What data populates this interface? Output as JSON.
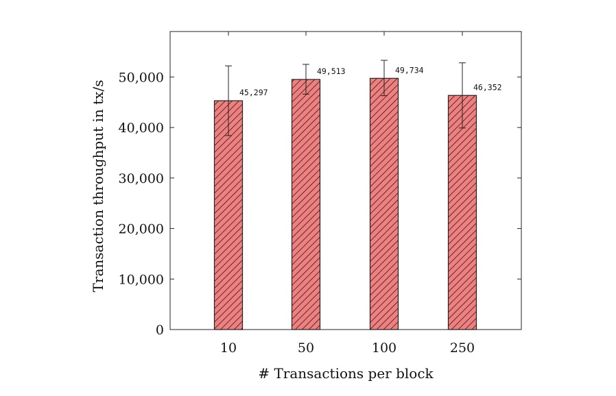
{
  "chart_data": {
    "type": "bar",
    "categories": [
      "10",
      "50",
      "100",
      "250"
    ],
    "values": [
      45297,
      49513,
      49734,
      46352
    ],
    "value_labels": [
      "45,297",
      "49,513",
      "49,734",
      "46,352"
    ],
    "error_bars": [
      {
        "low": 38400,
        "high": 52200
      },
      {
        "low": 46600,
        "high": 52500
      },
      {
        "low": 46300,
        "high": 53300
      },
      {
        "low": 39900,
        "high": 52800
      }
    ],
    "xlabel": "# Transactions per block",
    "ylabel": "Transaction throughput in tx/s",
    "yticks": [
      0,
      10000,
      20000,
      30000,
      40000,
      50000
    ],
    "ytick_labels": [
      "0",
      "10,000",
      "20,000",
      "30,000",
      "40,000",
      "50,000"
    ],
    "ylim": [
      0,
      59000
    ],
    "grid": false,
    "bar_color": "#f08080",
    "hatch": "north east lines",
    "legend": "none"
  }
}
